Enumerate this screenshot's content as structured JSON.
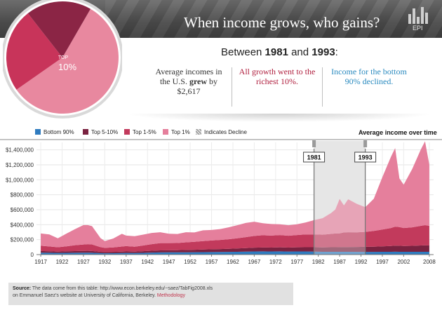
{
  "header": {
    "title": "When income grows, who gains?",
    "logo": "EPI"
  },
  "pie": {
    "label_top": "TOP",
    "label_value": "10%"
  },
  "subhead": {
    "prefix": "Between",
    "year_start": "1981",
    "mid": "and",
    "year_end": "1993",
    "suffix": ":"
  },
  "stats": {
    "col1_line1": "Average incomes in",
    "col1_line2_pre": "the U.S.",
    "col1_line2_bold": "grew",
    "col1_line2_post": "by",
    "col1_line3": "$2,617",
    "col2_line1": "All growth went to the",
    "col2_line2": "richest 10%.",
    "col3_line1": "Income for the bottom",
    "col3_line2": "90% declined."
  },
  "legend": {
    "bottom90": "Bottom 90%",
    "top5_10": "Top 5-10%",
    "top1_5": "Top 1-5%",
    "top1": "Top 1%",
    "decline": "Indicates Decline",
    "avg_label": "Average income over time"
  },
  "colors": {
    "bottom90": "#2f7bbf",
    "top5_10": "#7a2240",
    "top1_5": "#c23a5c",
    "top1": "#e57f9c",
    "pie_large": "#e8889f",
    "pie_mid": "#c8345a",
    "pie_small": "#8b2545"
  },
  "chart_data": {
    "type": "area",
    "title": "Average income over time",
    "ylim": [
      0,
      1500000
    ],
    "yticks": [
      0,
      200000,
      400000,
      600000,
      800000,
      1000000,
      1200000,
      1400000
    ],
    "ytick_labels": [
      "0",
      "$200,000",
      "$400,000",
      "$600,000",
      "$800,000",
      "$1,000,000",
      "$1,200,000",
      "$1,400,000"
    ],
    "xticks": [
      1917,
      1922,
      1927,
      1932,
      1937,
      1942,
      1947,
      1952,
      1957,
      1962,
      1967,
      1972,
      1977,
      1982,
      1987,
      1992,
      1997,
      2002,
      2008
    ],
    "decline_range": [
      1981,
      1993
    ],
    "markers": [
      "1981",
      "1993"
    ],
    "x": [
      1917,
      1919,
      1921,
      1923,
      1925,
      1927,
      1928,
      1929,
      1931,
      1932,
      1934,
      1936,
      1937,
      1939,
      1941,
      1943,
      1945,
      1947,
      1949,
      1951,
      1953,
      1955,
      1957,
      1959,
      1961,
      1963,
      1965,
      1967,
      1969,
      1971,
      1973,
      1975,
      1977,
      1979,
      1981,
      1983,
      1985,
      1986,
      1987,
      1988,
      1989,
      1991,
      1993,
      1995,
      1997,
      1999,
      2000,
      2001,
      2002,
      2004,
      2006,
      2007,
      2008
    ],
    "series": [
      {
        "name": "Bottom 90%",
        "values": [
          26000,
          25000,
          22000,
          24000,
          25000,
          26000,
          26000,
          25000,
          20000,
          18000,
          19000,
          21000,
          22000,
          21000,
          24000,
          27000,
          29000,
          30000,
          30000,
          31000,
          32000,
          33000,
          34000,
          35000,
          36000,
          38000,
          40000,
          42000,
          43000,
          42000,
          43000,
          41000,
          42000,
          42000,
          40000,
          38000,
          38000,
          38000,
          38000,
          38000,
          37000,
          36000,
          36000,
          36000,
          37000,
          38000,
          39000,
          38000,
          37000,
          37000,
          38000,
          38000,
          37000
        ]
      },
      {
        "name": "Top 5-10%",
        "values": [
          22000,
          20000,
          18000,
          20000,
          22000,
          23000,
          24000,
          23000,
          18000,
          16000,
          17000,
          19000,
          20000,
          19000,
          22000,
          25000,
          27000,
          28000,
          29000,
          31000,
          33000,
          35000,
          37000,
          39000,
          41000,
          44000,
          47000,
          50000,
          52000,
          52000,
          54000,
          53000,
          55000,
          57000,
          58000,
          58000,
          60000,
          61000,
          62000,
          63000,
          64000,
          66000,
          68000,
          70000,
          73000,
          77000,
          80000,
          80000,
          78000,
          80000,
          84000,
          86000,
          85000
        ]
      },
      {
        "name": "Top 1-5%",
        "values": [
          70000,
          64000,
          58000,
          66000,
          78000,
          86000,
          90000,
          88000,
          62000,
          56000,
          60000,
          68000,
          72000,
          66000,
          76000,
          88000,
          98000,
          96000,
          96000,
          102000,
          106000,
          112000,
          118000,
          122000,
          128000,
          136000,
          146000,
          158000,
          164000,
          160000,
          164000,
          158000,
          164000,
          170000,
          172000,
          170000,
          178000,
          184000,
          184000,
          196000,
          198000,
          196000,
          200000,
          210000,
          225000,
          240000,
          255000,
          250000,
          240000,
          248000,
          262000,
          270000,
          262000
        ]
      },
      {
        "name": "Top 1%",
        "values": [
          165000,
          160000,
          120000,
          170000,
          215000,
          260000,
          255000,
          245000,
          120000,
          90000,
          120000,
          170000,
          140000,
          140000,
          145000,
          150000,
          145000,
          125000,
          120000,
          135000,
          125000,
          145000,
          140000,
          145000,
          160000,
          175000,
          190000,
          190000,
          160000,
          155000,
          145000,
          140000,
          145000,
          160000,
          190000,
          220000,
          280000,
          320000,
          460000,
          360000,
          440000,
          380000,
          330000,
          430000,
          700000,
          950000,
          1050000,
          650000,
          580000,
          780000,
          1020000,
          1120000,
          820000
        ]
      }
    ]
  },
  "source": {
    "label": "Source:",
    "text_line1": "The data come from this table: http://www.econ.berkeley.edu/~saez/TabFig2008.xls",
    "text_line2": "on Emmanuel Saez's website at University of California, Berkeley.",
    "link": "Methodology"
  }
}
